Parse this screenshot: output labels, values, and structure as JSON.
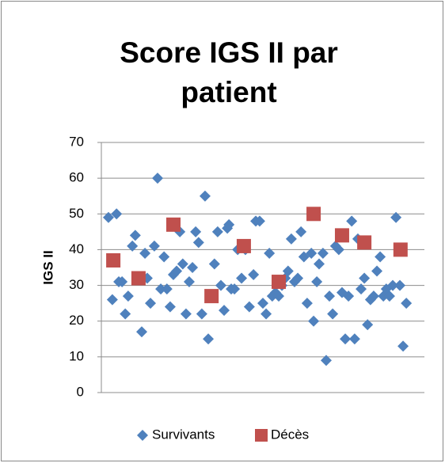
{
  "chart_data": {
    "type": "scatter",
    "title": "Score IGS II par patient",
    "ylabel": "IGS II",
    "xlim": [
      0,
      100
    ],
    "ylim": [
      0,
      70
    ],
    "yticks": [
      0,
      10,
      20,
      30,
      40,
      50,
      60,
      70
    ],
    "grid": true,
    "legend": "bottom",
    "series": [
      {
        "name": "Survivants",
        "color": "#4f81bd",
        "marker": "diamond",
        "x": [
          2.2,
          3.4,
          4.7,
          5.4,
          6.4,
          7.4,
          8.3,
          9.6,
          10.5,
          11.5,
          12.5,
          13.5,
          14.2,
          15.2,
          16.4,
          17.4,
          18.4,
          19.4,
          20.3,
          21.3,
          22.3,
          23.3,
          24.3,
          25.2,
          26.2,
          27.2,
          28.2,
          29.2,
          30.1,
          31.1,
          32.1,
          33.1,
          35.0,
          36.0,
          37.0,
          38.0,
          39.0,
          39.5,
          40.2,
          41.2,
          42.2,
          43.4,
          44.6,
          45.8,
          47.1,
          47.8,
          49.0,
          50.0,
          51.0,
          52.0,
          52.9,
          53.9,
          54.9,
          55.9,
          56.9,
          57.8,
          58.8,
          59.8,
          60.8,
          61.8,
          62.7,
          63.7,
          65.0,
          65.7,
          66.7,
          67.4,
          68.6,
          69.6,
          70.6,
          71.6,
          72.5,
          73.5,
          74.5,
          75.5,
          76.5,
          77.5,
          78.4,
          79.4,
          80.4,
          81.4,
          82.4,
          83.3,
          84.3,
          85.3,
          86.3,
          87.3,
          88.2,
          89.2,
          90.2,
          91.2,
          92.4,
          93.4,
          94.4
        ],
        "values": [
          49,
          26,
          50,
          31,
          31,
          22,
          27,
          41,
          44,
          32,
          17,
          39,
          32,
          25,
          41,
          60,
          29,
          38,
          29,
          24,
          33,
          34,
          45,
          36,
          22,
          31,
          35,
          45,
          42,
          22,
          55,
          15,
          36,
          45,
          30,
          23,
          46,
          47,
          29,
          29,
          40,
          32,
          40,
          24,
          33,
          48,
          48,
          25,
          22,
          39,
          27,
          28,
          27,
          30,
          32,
          34,
          43,
          31,
          32,
          45,
          38,
          25,
          39,
          20,
          31,
          36,
          39,
          9,
          27,
          22,
          41,
          40,
          28,
          15,
          27,
          48,
          15,
          43,
          29,
          32,
          19,
          26,
          27,
          34,
          38,
          27,
          29,
          27,
          30,
          49,
          30,
          13,
          25
        ]
      },
      {
        "name": "Décès",
        "color": "#c0504d",
        "marker": "square",
        "x": [
          3.7,
          11.5,
          22.3,
          34.1,
          44.1,
          54.9,
          65.7,
          74.5,
          81.4,
          92.6
        ],
        "values": [
          37,
          32,
          47,
          27,
          41,
          31,
          50,
          44,
          42,
          40
        ]
      }
    ]
  }
}
